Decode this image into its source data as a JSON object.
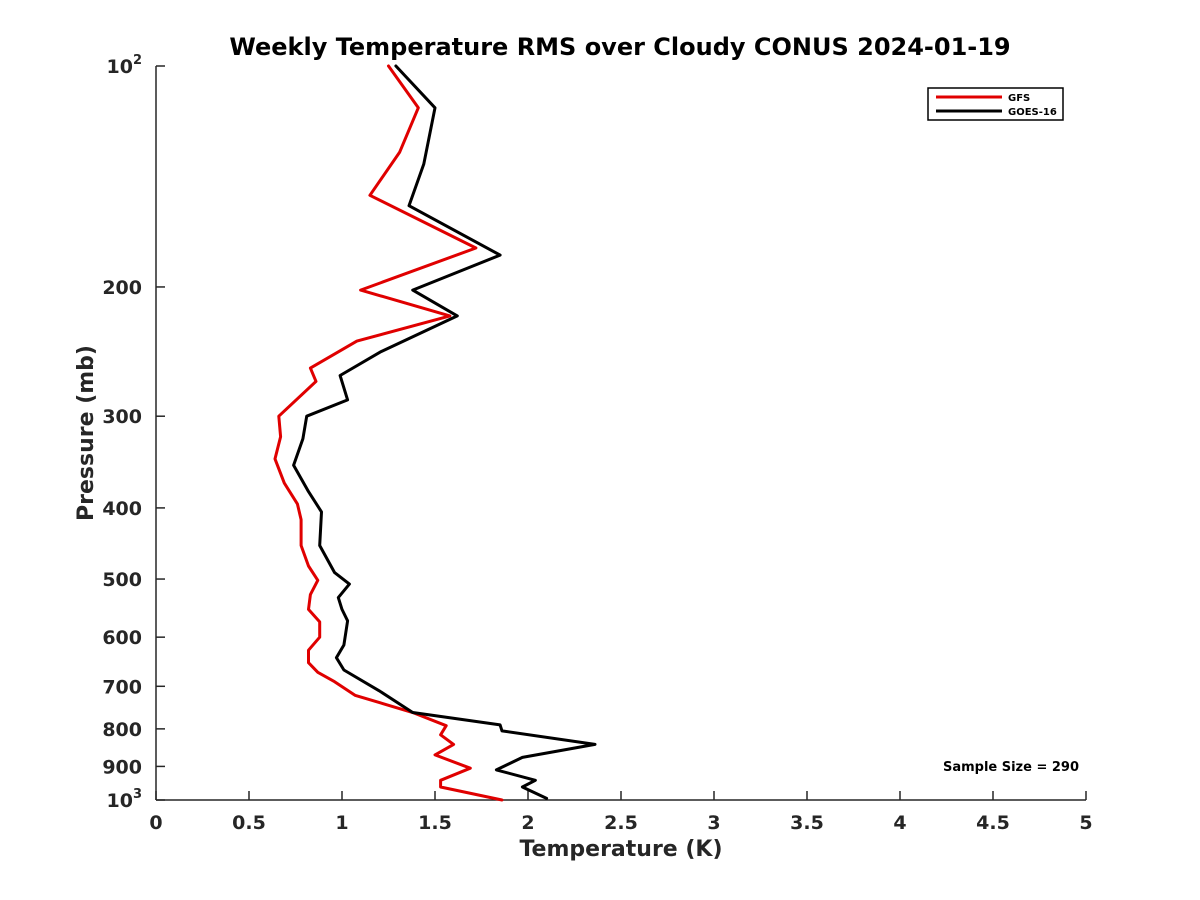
{
  "chart_data": {
    "type": "line",
    "title": "Weekly Temperature RMS over Cloudy CONUS 2024-01-19",
    "xlabel": "Temperature (K)",
    "ylabel": "Pressure (mb)",
    "xlim": [
      0,
      5
    ],
    "ylim": [
      100,
      1000
    ],
    "y_scale": "log",
    "y_reversed": true,
    "grid": false,
    "legend_position": "top-right",
    "x_ticks": [
      "0",
      "0.5",
      "1",
      "1.5",
      "2",
      "2.5",
      "3",
      "3.5",
      "4",
      "4.5",
      "5"
    ],
    "y_ticks": [
      {
        "value": 100,
        "label": "10",
        "exponent": "2"
      },
      {
        "value": 200,
        "label": "200",
        "exponent": ""
      },
      {
        "value": 300,
        "label": "300",
        "exponent": ""
      },
      {
        "value": 400,
        "label": "400",
        "exponent": ""
      },
      {
        "value": 500,
        "label": "500",
        "exponent": ""
      },
      {
        "value": 600,
        "label": "600",
        "exponent": ""
      },
      {
        "value": 700,
        "label": "700",
        "exponent": ""
      },
      {
        "value": 800,
        "label": "800",
        "exponent": ""
      },
      {
        "value": 900,
        "label": "900",
        "exponent": ""
      },
      {
        "value": 1000,
        "label": "10",
        "exponent": "3"
      }
    ],
    "annotation": "Sample Size = 290",
    "series": [
      {
        "name": "GFS",
        "color": "#e00000",
        "points": [
          [
            1.25,
            100
          ],
          [
            1.41,
            114
          ],
          [
            1.31,
            131
          ],
          [
            1.15,
            150
          ],
          [
            1.72,
            177
          ],
          [
            1.1,
            202
          ],
          [
            1.58,
            219
          ],
          [
            1.08,
            237
          ],
          [
            0.83,
            258
          ],
          [
            0.86,
            269
          ],
          [
            0.66,
            300
          ],
          [
            0.67,
            320
          ],
          [
            0.64,
            343
          ],
          [
            0.69,
            370
          ],
          [
            0.76,
            395
          ],
          [
            0.78,
            415
          ],
          [
            0.78,
            450
          ],
          [
            0.82,
            480
          ],
          [
            0.87,
            502
          ],
          [
            0.83,
            525
          ],
          [
            0.82,
            550
          ],
          [
            0.88,
            572
          ],
          [
            0.88,
            600
          ],
          [
            0.82,
            625
          ],
          [
            0.82,
            650
          ],
          [
            0.87,
            670
          ],
          [
            0.96,
            690
          ],
          [
            1.07,
            720
          ],
          [
            1.38,
            760
          ],
          [
            1.56,
            792
          ],
          [
            1.53,
            815
          ],
          [
            1.6,
            840
          ],
          [
            1.5,
            868
          ],
          [
            1.69,
            905
          ],
          [
            1.53,
            940
          ],
          [
            1.53,
            960
          ],
          [
            1.86,
            1000
          ]
        ]
      },
      {
        "name": "GOES-16",
        "color": "#000000",
        "points": [
          [
            1.29,
            100
          ],
          [
            1.5,
            114
          ],
          [
            1.44,
            136
          ],
          [
            1.36,
            155
          ],
          [
            1.85,
            181
          ],
          [
            1.38,
            202
          ],
          [
            1.62,
            219
          ],
          [
            1.21,
            245
          ],
          [
            0.99,
            264
          ],
          [
            1.03,
            285
          ],
          [
            0.81,
            300
          ],
          [
            0.79,
            322
          ],
          [
            0.74,
            350
          ],
          [
            0.82,
            380
          ],
          [
            0.89,
            405
          ],
          [
            0.88,
            450
          ],
          [
            0.96,
            490
          ],
          [
            1.04,
            508
          ],
          [
            0.98,
            530
          ],
          [
            1.0,
            550
          ],
          [
            1.03,
            570
          ],
          [
            1.01,
            615
          ],
          [
            0.97,
            640
          ],
          [
            1.01,
            665
          ],
          [
            1.2,
            710
          ],
          [
            1.38,
            760
          ],
          [
            1.85,
            790
          ],
          [
            1.86,
            805
          ],
          [
            2.36,
            840
          ],
          [
            1.97,
            875
          ],
          [
            1.83,
            910
          ],
          [
            2.04,
            940
          ],
          [
            1.97,
            960
          ],
          [
            2.1,
            995
          ]
        ]
      }
    ]
  }
}
